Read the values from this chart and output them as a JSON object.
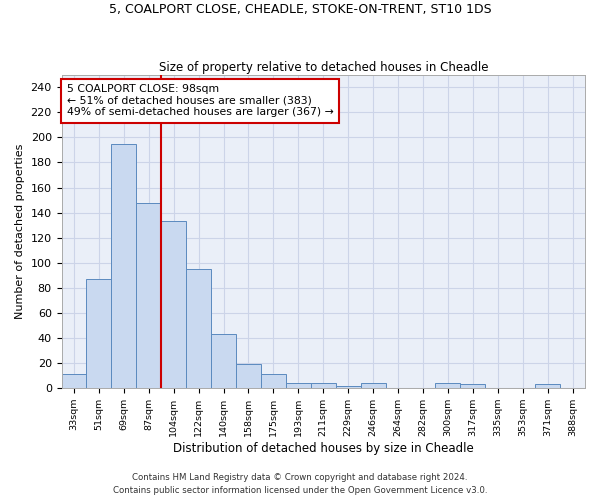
{
  "title1": "5, COALPORT CLOSE, CHEADLE, STOKE-ON-TRENT, ST10 1DS",
  "title2": "Size of property relative to detached houses in Cheadle",
  "xlabel": "Distribution of detached houses by size in Cheadle",
  "ylabel": "Number of detached properties",
  "categories": [
    "33sqm",
    "51sqm",
    "69sqm",
    "87sqm",
    "104sqm",
    "122sqm",
    "140sqm",
    "158sqm",
    "175sqm",
    "193sqm",
    "211sqm",
    "229sqm",
    "246sqm",
    "264sqm",
    "282sqm",
    "300sqm",
    "317sqm",
    "335sqm",
    "353sqm",
    "371sqm",
    "388sqm"
  ],
  "values": [
    11,
    87,
    195,
    148,
    133,
    95,
    43,
    19,
    11,
    4,
    4,
    2,
    4,
    0,
    0,
    4,
    3,
    0,
    0,
    3,
    0
  ],
  "bar_color": "#c9d9f0",
  "bar_edge_color": "#5b8abf",
  "vline_x": 3.5,
  "vline_color": "#cc0000",
  "annotation_text": "5 COALPORT CLOSE: 98sqm\n← 51% of detached houses are smaller (383)\n49% of semi-detached houses are larger (367) →",
  "annotation_box_color": "#ffffff",
  "annotation_box_edge": "#cc0000",
  "ylim": [
    0,
    250
  ],
  "yticks": [
    0,
    20,
    40,
    60,
    80,
    100,
    120,
    140,
    160,
    180,
    200,
    220,
    240
  ],
  "footer1": "Contains HM Land Registry data © Crown copyright and database right 2024.",
  "footer2": "Contains public sector information licensed under the Open Government Licence v3.0.",
  "grid_color": "#ccd4e8",
  "bg_color": "#eaeff8"
}
